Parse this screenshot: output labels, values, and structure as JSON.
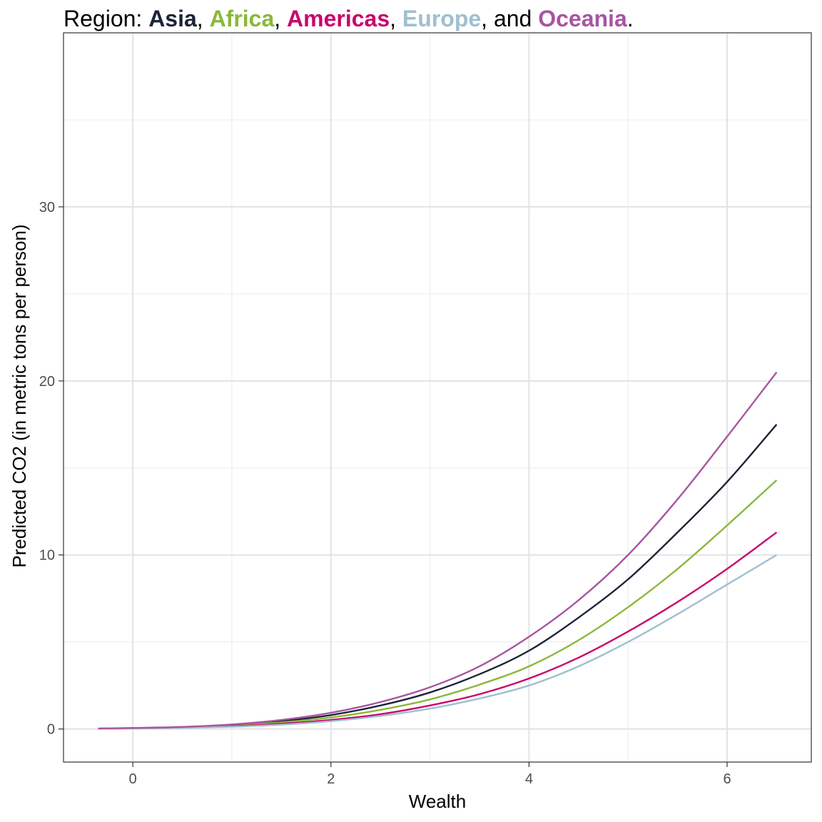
{
  "title": {
    "prefix": "Region: ",
    "regions": [
      {
        "name": "Asia",
        "color": "#1b2438"
      },
      {
        "name": "Africa",
        "color": "#8ab83a"
      },
      {
        "name": "Americas",
        "color": "#c8066b"
      },
      {
        "name": "Europe",
        "color": "#9fbfcf"
      },
      {
        "name": "Oceania",
        "color": "#a855a0"
      }
    ],
    "sep1": ", ",
    "sep2": ", ",
    "sep3": ", ",
    "sep4": ", and ",
    "suffix": "."
  },
  "chart_data": {
    "type": "line",
    "title": "Region: Asia, Africa, Americas, Europe, and Oceania.",
    "xlabel": "Wealth",
    "ylabel": "Predicted CO2 (in metric tons per person)",
    "xlim": [
      -0.7,
      6.85
    ],
    "ylim": [
      -1.9,
      40
    ],
    "xticks": [
      0,
      2,
      4,
      6
    ],
    "yticks": [
      0,
      10,
      20,
      30
    ],
    "grid": true,
    "legend": "colored title text",
    "x": [
      -0.35,
      0,
      0.5,
      1,
      1.5,
      2,
      2.5,
      3,
      3.5,
      4,
      4.5,
      5,
      5.5,
      6,
      6.5
    ],
    "series": [
      {
        "name": "Asia",
        "color": "#1b2438",
        "values": [
          0.02,
          0.05,
          0.1,
          0.22,
          0.45,
          0.8,
          1.35,
          2.1,
          3.15,
          4.5,
          6.4,
          8.6,
          11.3,
          14.2,
          17.5
        ]
      },
      {
        "name": "Africa",
        "color": "#8ab83a",
        "values": [
          0.02,
          0.04,
          0.09,
          0.19,
          0.38,
          0.66,
          1.1,
          1.7,
          2.55,
          3.6,
          5.1,
          7.0,
          9.2,
          11.7,
          14.3
        ]
      },
      {
        "name": "Americas",
        "color": "#c8066b",
        "values": [
          0.02,
          0.04,
          0.08,
          0.16,
          0.3,
          0.52,
          0.85,
          1.35,
          2.0,
          2.9,
          4.1,
          5.6,
          7.3,
          9.2,
          11.3
        ]
      },
      {
        "name": "Europe",
        "color": "#9fbfcf",
        "values": [
          0.01,
          0.03,
          0.06,
          0.13,
          0.25,
          0.45,
          0.75,
          1.17,
          1.75,
          2.5,
          3.6,
          5.0,
          6.6,
          8.3,
          10.0
        ]
      },
      {
        "name": "Oceania",
        "color": "#a855a0",
        "values": [
          0.03,
          0.06,
          0.12,
          0.26,
          0.52,
          0.93,
          1.55,
          2.4,
          3.6,
          5.3,
          7.4,
          10.0,
          13.2,
          16.8,
          20.5
        ]
      }
    ]
  }
}
